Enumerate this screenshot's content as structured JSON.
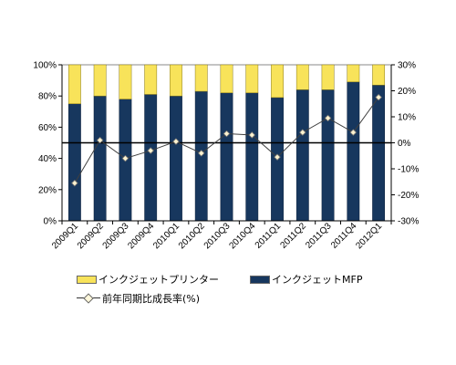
{
  "chart_data": {
    "type": "bar",
    "stacked": true,
    "categories": [
      "2009Q1",
      "2009Q2",
      "2009Q3",
      "2009Q4",
      "2010Q1",
      "2010Q2",
      "2010Q3",
      "2010Q4",
      "2011Q1",
      "2011Q2",
      "2011Q3",
      "2011Q4",
      "2012Q1"
    ],
    "series": [
      {
        "name": "インクジェットMFP",
        "values": [
          75,
          80,
          78,
          81,
          80,
          83,
          82,
          82,
          79,
          84,
          84,
          89,
          87
        ],
        "color": "#17375e",
        "stack_position": "bottom"
      },
      {
        "name": "インクジェットプリンター",
        "values": [
          25,
          20,
          22,
          19,
          20,
          17,
          18,
          18,
          21,
          16,
          16,
          11,
          13
        ],
        "color": "#f8e35a",
        "stack_position": "top"
      }
    ],
    "line_series": {
      "name": "前年同期比成長率(%)",
      "axis": "right",
      "values": [
        -15.5,
        1,
        -6,
        -3,
        0.5,
        -4,
        3.5,
        3,
        -5.5,
        4,
        9.5,
        4,
        17.5
      ]
    },
    "y_left": {
      "ticks": [
        "0%",
        "20%",
        "40%",
        "60%",
        "80%",
        "100%"
      ],
      "min": 0,
      "max": 100
    },
    "y_right": {
      "ticks": [
        "-30%",
        "-20%",
        "-10%",
        "0%",
        "10%",
        "20%",
        "30%"
      ],
      "min": -30,
      "max": 30
    },
    "grid": false,
    "legend_placement": "bottom"
  }
}
